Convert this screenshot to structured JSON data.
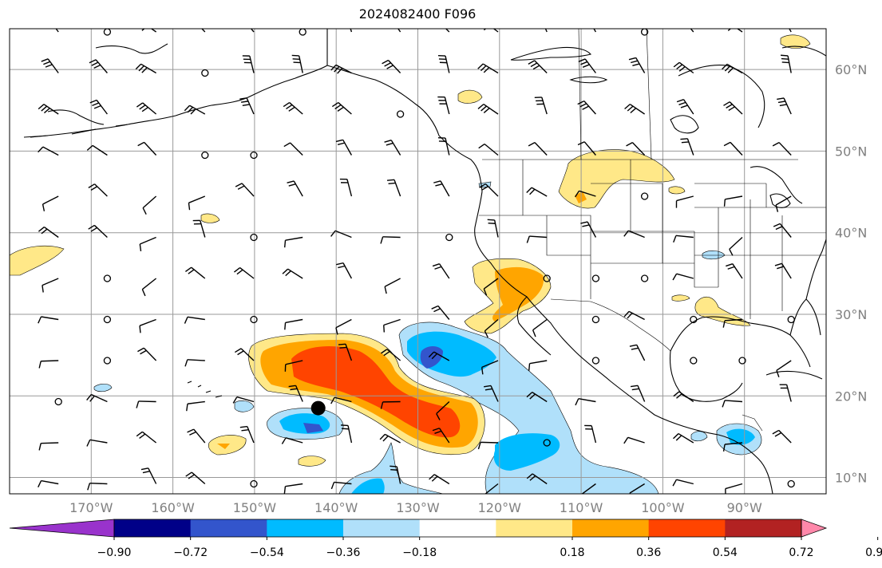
{
  "title": "2024082400 F096",
  "lat_labels": [
    {
      "lat": 60,
      "text": "60°N"
    },
    {
      "lat": 50,
      "text": "50°N"
    },
    {
      "lat": 40,
      "text": "40°N"
    },
    {
      "lat": 30,
      "text": "30°N"
    },
    {
      "lat": 20,
      "text": "20°N"
    },
    {
      "lat": 10,
      "text": "10°N"
    }
  ],
  "lon_labels": [
    {
      "lon": -170,
      "text": "170°W"
    },
    {
      "lon": -160,
      "text": "160°W"
    },
    {
      "lon": -150,
      "text": "150°W"
    },
    {
      "lon": -140,
      "text": "140°W"
    },
    {
      "lon": -130,
      "text": "130°W"
    },
    {
      "lon": -120,
      "text": "120°W"
    },
    {
      "lon": -110,
      "text": "110°W"
    },
    {
      "lon": -100,
      "text": "100°W"
    },
    {
      "lon": -90,
      "text": "90°W"
    }
  ],
  "extent": {
    "lon_min": -180,
    "lon_max": -80,
    "lat_min": 8,
    "lat_max": 65
  },
  "colorbar": {
    "colors": [
      "#9933cc",
      "#000088",
      "#3355cc",
      "#00bbff",
      "#b0e0fa",
      "#ffffff",
      "#ffe888",
      "#ffa500",
      "#ff4400",
      "#b22222",
      "#ff88aa"
    ],
    "ticks": [
      {
        "value": -0.9,
        "text": "−0.90"
      },
      {
        "value": -0.72,
        "text": "−0.72"
      },
      {
        "value": -0.54,
        "text": "−0.54"
      },
      {
        "value": -0.36,
        "text": "−0.36"
      },
      {
        "value": -0.18,
        "text": "−0.18"
      },
      {
        "value": 0.18,
        "text": "0.18"
      },
      {
        "value": 0.36,
        "text": "0.36"
      },
      {
        "value": 0.54,
        "text": "0.54"
      },
      {
        "value": 0.72,
        "text": "0.72"
      },
      {
        "value": 0.9,
        "text": "0.90"
      }
    ]
  },
  "marker": {
    "lon": -142.2,
    "lat": 18.5,
    "color": "#000000"
  }
}
